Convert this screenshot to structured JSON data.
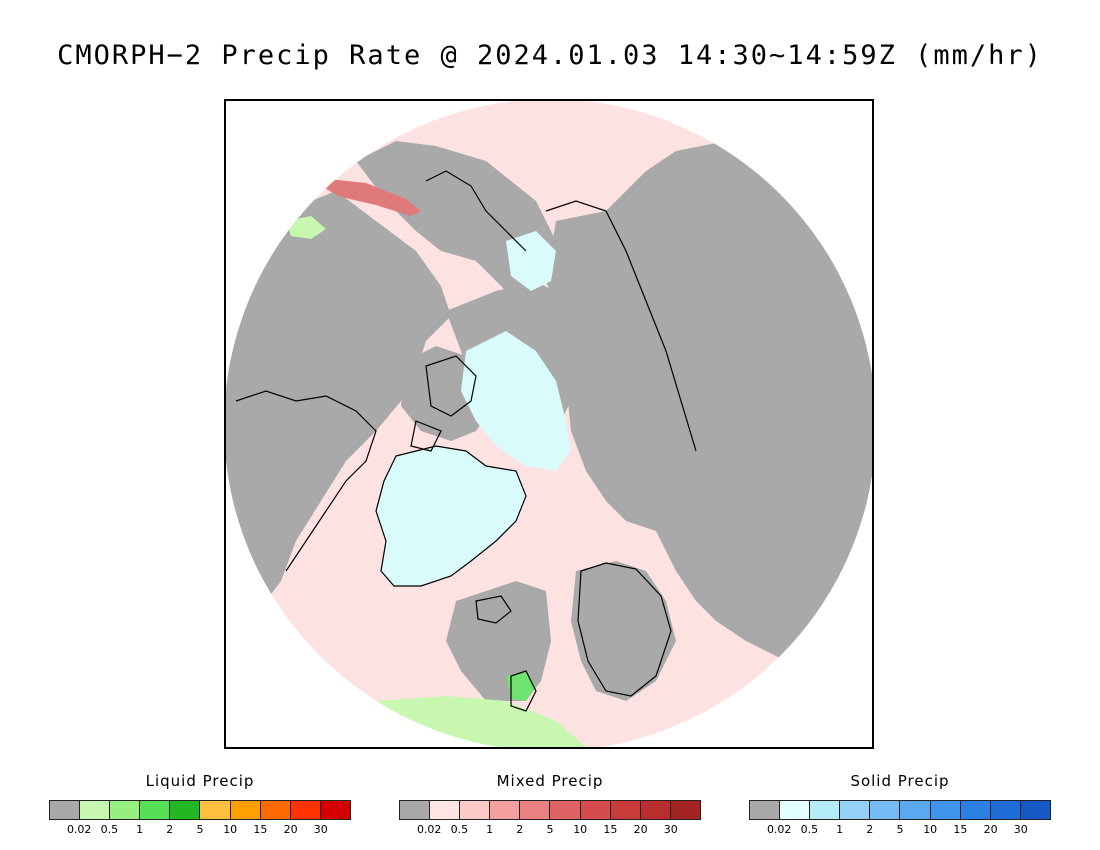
{
  "title": "CMORPH−2 Precip Rate @ 2024.01.03 14:30~14:59Z (mm/hr)",
  "map": {
    "projection": "north-polar-stereographic",
    "colors": {
      "background_gray": "#a9a9a9",
      "coastline": "#000000",
      "ocean_mixed_light": "#fde2e2",
      "mixed_heavy": "#e07a7a",
      "solid_light": "#d9fbfb",
      "liquid_light": "#c8f7b0",
      "liquid_bright": "#6ee36e"
    }
  },
  "legends": [
    {
      "title": "Liquid Precip",
      "colors": [
        "#a9a9a9",
        "#c8f7b0",
        "#96f080",
        "#55e055",
        "#22b822",
        "#ffc040",
        "#ffa000",
        "#ff6a00",
        "#ff3200",
        "#d40000"
      ],
      "ticks": [
        "0.02",
        "0.5",
        "1",
        "2",
        "5",
        "10",
        "15",
        "20",
        "30"
      ]
    },
    {
      "title": "Mixed Precip",
      "colors": [
        "#a9a9a9",
        "#ffe4e4",
        "#fcc8c8",
        "#f4a0a0",
        "#ea8080",
        "#e06262",
        "#d44c4c",
        "#c83c3c",
        "#b82e2e",
        "#a42424"
      ],
      "ticks": [
        "0.02",
        "0.5",
        "1",
        "2",
        "5",
        "10",
        "15",
        "20",
        "30"
      ]
    },
    {
      "title": "Solid Precip",
      "colors": [
        "#a9a9a9",
        "#e4ffff",
        "#b4ecf8",
        "#94d0f8",
        "#76bcf4",
        "#5aa8f0",
        "#4094ec",
        "#2c80e4",
        "#1e6cd8",
        "#1658c4"
      ],
      "ticks": [
        "0.02",
        "0.5",
        "1",
        "2",
        "5",
        "10",
        "15",
        "20",
        "30"
      ]
    }
  ]
}
